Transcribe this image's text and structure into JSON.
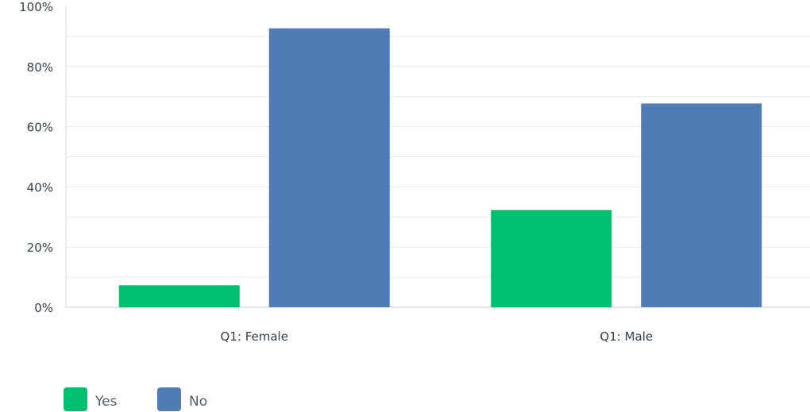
{
  "chart_data": {
    "type": "bar",
    "title": "",
    "xlabel": "",
    "ylabel": "",
    "categories": [
      "Q1: Female",
      "Q1: Male"
    ],
    "series": [
      {
        "name": "Yes",
        "color": "#00bf6f",
        "values": [
          7.3,
          32.3
        ]
      },
      {
        "name": "No",
        "color": "#507cb6",
        "values": [
          92.7,
          67.7
        ]
      }
    ],
    "ylim": [
      0,
      100
    ],
    "yticks": [
      0,
      20,
      40,
      60,
      80,
      100
    ],
    "ytick_labels": [
      "0%",
      "20%",
      "40%",
      "60%",
      "80%",
      "100%"
    ],
    "grid": true,
    "legend_position": "bottom-left"
  }
}
